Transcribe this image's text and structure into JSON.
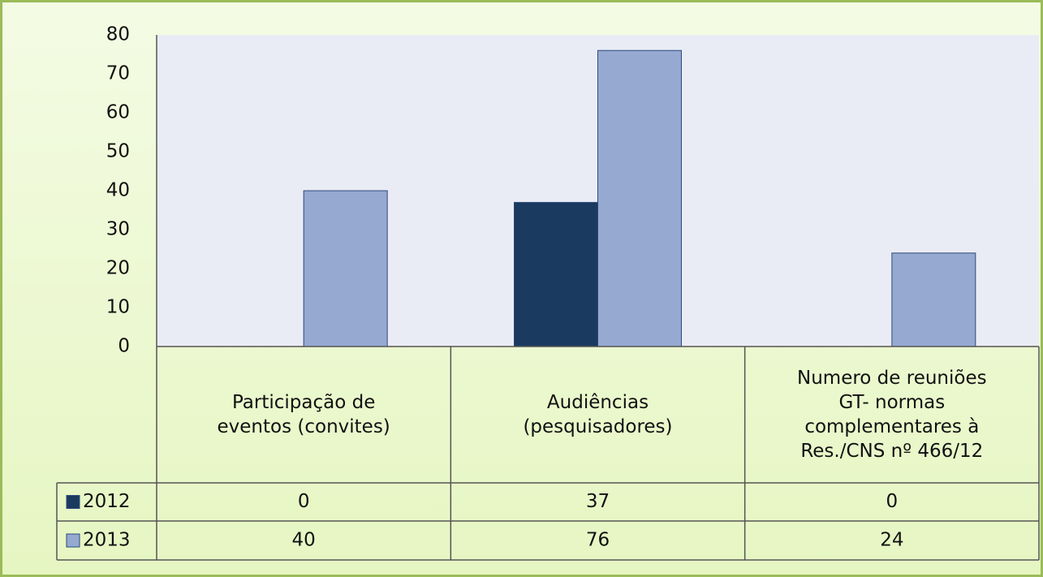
{
  "chart_data": {
    "type": "bar",
    "categories": [
      "Participação de\neventos (convites)",
      "Audiências\n(pesquisadores)",
      "Numero de reuniões\nGT- normas\ncomplementares à\nRes./CNS nº 466/12"
    ],
    "series": [
      {
        "name": "2012",
        "color": "#1b3a5f",
        "values": [
          0,
          37,
          0
        ]
      },
      {
        "name": "2013",
        "color": "#95a9d1",
        "values": [
          40,
          76,
          24
        ]
      }
    ],
    "ylim": [
      0,
      80
    ],
    "yticks": [
      0,
      10,
      20,
      30,
      40,
      50,
      60,
      70,
      80
    ],
    "legend": "table"
  }
}
